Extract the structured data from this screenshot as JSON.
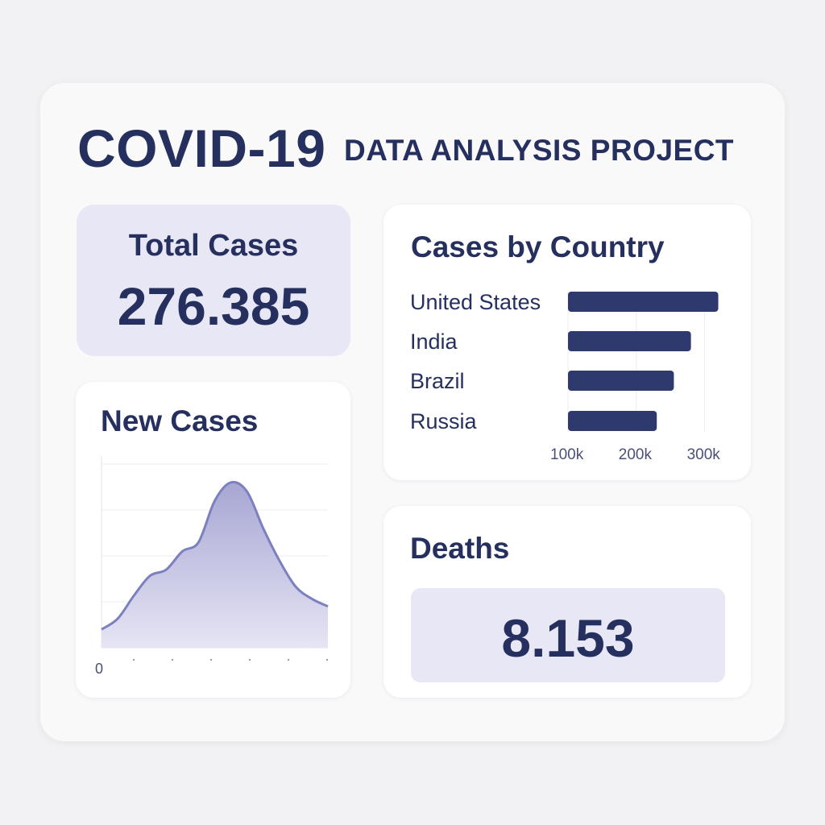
{
  "header": {
    "title": "COVID-19",
    "subtitle": "DATA ANALYSIS PROJECT"
  },
  "total_cases": {
    "label": "Total Cases",
    "value": "276.385"
  },
  "new_cases": {
    "title": "New Cases",
    "x_origin_label": "0"
  },
  "cases_by_country": {
    "title": "Cases by Country"
  },
  "deaths": {
    "label": "Deaths",
    "value": "8.153"
  },
  "colors": {
    "navy": "#26305f",
    "bar": "#2e3a6e",
    "area_line": "#7d80c0",
    "area_fill_top": "#a7a6d3",
    "area_fill_bottom": "#e6e5f4",
    "lavender": "#e8e7f5"
  },
  "chart_data": [
    {
      "type": "bar",
      "orientation": "horizontal",
      "title": "Cases by Country",
      "categories": [
        "United States",
        "India",
        "Brazil",
        "Russia"
      ],
      "values": [
        320,
        280,
        255,
        230
      ],
      "x_ticks": [
        "100k",
        "200k",
        "300k"
      ],
      "x_tick_values": [
        100,
        200,
        300
      ],
      "xlim": [
        100,
        330
      ],
      "units": "thousands",
      "grid": "vertical"
    },
    {
      "type": "area",
      "title": "New Cases",
      "x": [
        0,
        1,
        2,
        3,
        4,
        5,
        6,
        7,
        8,
        9,
        10,
        11,
        12,
        13,
        14
      ],
      "values": [
        0.6,
        0.95,
        1.7,
        2.35,
        2.55,
        3.15,
        3.45,
        4.8,
        5.4,
        5.1,
        3.9,
        2.85,
        2.0,
        1.6,
        1.35
      ],
      "ylim": [
        0,
        6
      ],
      "grid": "horizontal",
      "x_origin_label": "0"
    }
  ]
}
